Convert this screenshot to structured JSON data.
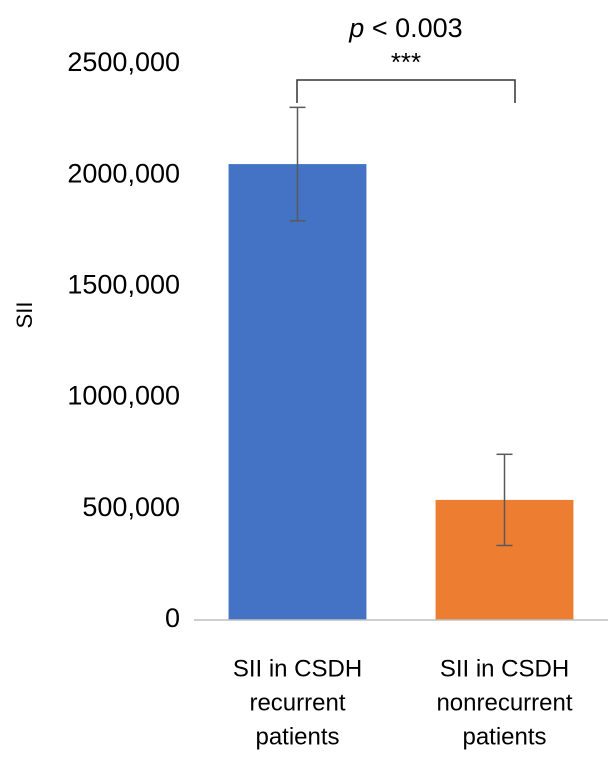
{
  "chart_data": {
    "type": "bar",
    "y_label": "SII",
    "categories": [
      [
        "SII in CSDH",
        "recurrent",
        "patients"
      ],
      [
        "SII in CSDH",
        "nonrecurrent",
        "patients"
      ]
    ],
    "values": [
      2050000,
      540000
    ],
    "errors": [
      255000,
      205000
    ],
    "colors": [
      "#4472c4",
      "#ed7d31"
    ],
    "ylim": [
      0,
      2500000
    ],
    "yticks": [
      0,
      {
        "value": 500000,
        "label": "500,000"
      },
      {
        "value": 1000000,
        "label": "1000,000"
      },
      {
        "value": 1500000,
        "label": "1500,000"
      },
      {
        "value": 2000000,
        "label": "2000,000"
      },
      {
        "value": 2500000,
        "label": "2500,000"
      }
    ],
    "grid": false,
    "significance": {
      "p_symbol": "p",
      "p_text": "< 0.003",
      "stars": "***"
    }
  }
}
